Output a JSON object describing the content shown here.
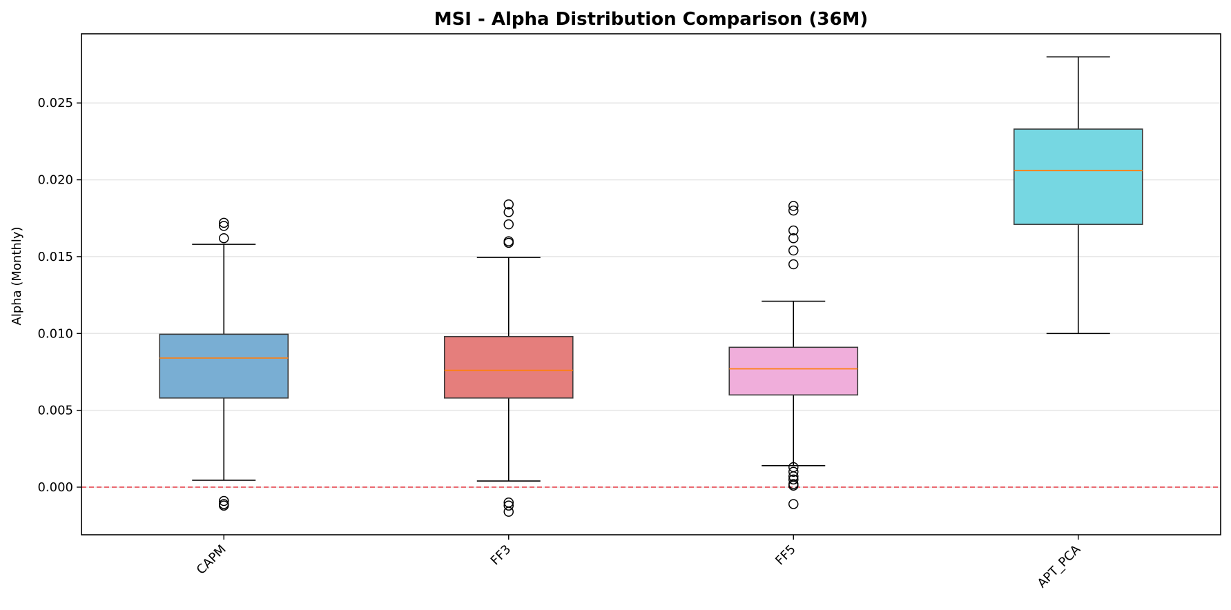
{
  "chart_data": {
    "type": "box",
    "title": "MSI - Alpha Distribution Comparison (36M)",
    "xlabel": "",
    "ylabel": "Alpha (Monthly)",
    "ylim": [
      -0.0031,
      0.0295
    ],
    "yticks": [
      0.0,
      0.005,
      0.01,
      0.015,
      0.02,
      0.025
    ],
    "ytick_labels": [
      "0.000",
      "0.005",
      "0.010",
      "0.015",
      "0.020",
      "0.025"
    ],
    "grid": "horizontal",
    "reference_line": {
      "y": 0.0,
      "color": "#e8414b",
      "style": "dashed"
    },
    "median_color": "#ff7f0e",
    "categories": [
      "CAPM",
      "FF3",
      "FF5",
      "APT_PCA"
    ],
    "series": [
      {
        "category": "CAPM",
        "color": "#79aed3",
        "whisker_low": 0.00045,
        "q1": 0.0058,
        "median": 0.0084,
        "q3": 0.00995,
        "whisker_high": 0.0158,
        "outliers": [
          0.0172,
          0.017,
          0.0162,
          -0.0009,
          -0.0011,
          -0.0012
        ]
      },
      {
        "category": "FF3",
        "color": "#e57e7c",
        "whisker_low": 0.0004,
        "q1": 0.0058,
        "median": 0.0076,
        "q3": 0.0098,
        "whisker_high": 0.01495,
        "outliers": [
          0.0184,
          0.0179,
          0.0171,
          0.016,
          0.0159,
          -0.001,
          -0.0012,
          -0.0016
        ]
      },
      {
        "category": "FF5",
        "color": "#f0aedb",
        "whisker_low": 0.0014,
        "q1": 0.006,
        "median": 0.0077,
        "q3": 0.0091,
        "whisker_high": 0.0121,
        "outliers": [
          0.0183,
          0.018,
          0.0167,
          0.0162,
          0.0154,
          0.0145,
          0.0013,
          0.001,
          0.0007,
          0.0005,
          0.0002,
          0.0001,
          -0.0011
        ]
      },
      {
        "category": "APT_PCA",
        "color": "#76d7e2",
        "whisker_low": 0.01,
        "q1": 0.0171,
        "median": 0.0206,
        "q3": 0.0233,
        "whisker_high": 0.028,
        "outliers": []
      }
    ]
  }
}
